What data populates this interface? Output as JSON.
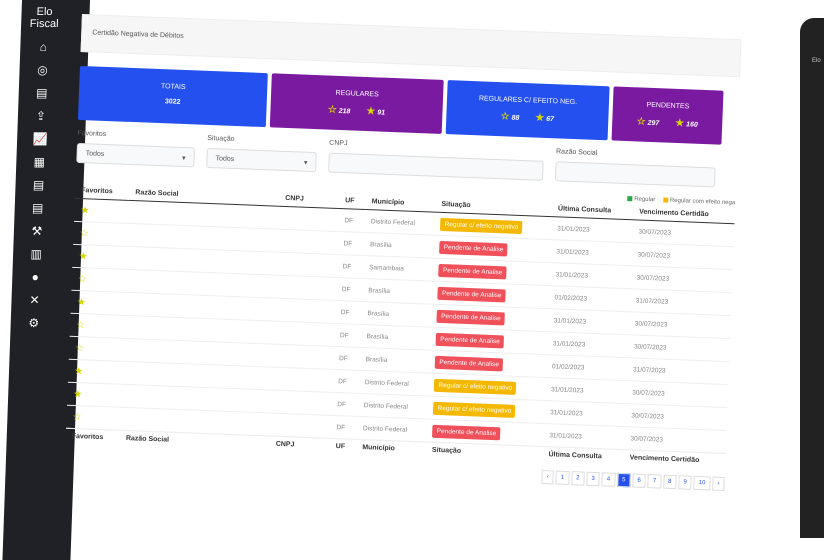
{
  "sidebar": {
    "brand": "Elo Fiscal",
    "icons": [
      "home-icon",
      "whatsapp-icon",
      "file-icon",
      "upload-icon",
      "chart-icon",
      "calculator-icon",
      "file-icon",
      "file-icon",
      "gavel-icon",
      "building-icon",
      "user-icon",
      "tools-icon",
      "gear-icon"
    ]
  },
  "device": {
    "label": "Elo"
  },
  "breadcrumb": "Certidão Negativa de Débitos",
  "cards": [
    {
      "title": "TOTAIS",
      "total": "3022",
      "color": "#2450f0"
    },
    {
      "title": "REGULARES",
      "outline": "218",
      "filled": "91",
      "color": "#7a1aa1"
    },
    {
      "title": "REGULARES C/ EFEITO NEG.",
      "outline": "88",
      "filled": "67",
      "color": "#2450f0"
    },
    {
      "title": "PENDENTES",
      "outline": "297",
      "filled": "160",
      "color": "#7a1aa1"
    }
  ],
  "filters": {
    "favoritos_label": "Favoritos",
    "favoritos_value": "Todos",
    "situacao_label": "Situação",
    "situacao_value": "Todos",
    "cnpj_label": "CNPJ",
    "razao_label": "Razão Social"
  },
  "legend": {
    "regular": "Regular",
    "regular_neg": "Regular com efeito nega"
  },
  "columns": [
    "Favoritos",
    "Razão Social",
    "CNPJ",
    "UF",
    "Município",
    "Situação",
    "Última Consulta",
    "Vencimento Certidão"
  ],
  "rows": [
    {
      "fav": true,
      "uf": "DF",
      "mun": "Distrito Federal",
      "sit": "Regular c/ efeito negativo",
      "status": "warn",
      "ult": "31/01/2023",
      "venc": "30/07/2023"
    },
    {
      "fav": false,
      "uf": "DF",
      "mun": "Brasília",
      "sit": "Pendente de Analise",
      "status": "danger",
      "ult": "31/01/2023",
      "venc": "30/07/2023"
    },
    {
      "fav": true,
      "uf": "DF",
      "mun": "Samambaia",
      "sit": "Pendente de Analise",
      "status": "danger",
      "ult": "31/01/2023",
      "venc": "30/07/2023"
    },
    {
      "fav": false,
      "uf": "DF",
      "mun": "Brasília",
      "sit": "Pendente de Analise",
      "status": "danger",
      "ult": "01/02/2023",
      "venc": "31/07/2023"
    },
    {
      "fav": true,
      "uf": "DF",
      "mun": "Brasília",
      "sit": "Pendente de Analise",
      "status": "danger",
      "ult": "31/01/2023",
      "venc": "30/07/2023"
    },
    {
      "fav": false,
      "uf": "DF",
      "mun": "Brasília",
      "sit": "Pendente de Analise",
      "status": "danger",
      "ult": "31/01/2023",
      "venc": "30/07/2023"
    },
    {
      "fav": false,
      "uf": "DF",
      "mun": "Brasília",
      "sit": "Pendente de Analise",
      "status": "danger",
      "ult": "01/02/2023",
      "venc": "31/07/2023"
    },
    {
      "fav": true,
      "uf": "DF",
      "mun": "Distrito Federal",
      "sit": "Regular c/ efeito negativo",
      "status": "warn",
      "ult": "31/01/2023",
      "venc": "30/07/2023"
    },
    {
      "fav": true,
      "uf": "DF",
      "mun": "Distrito Federal",
      "sit": "Regular c/ efeito negativo",
      "status": "warn",
      "ult": "31/01/2023",
      "venc": "30/07/2023"
    },
    {
      "fav": false,
      "uf": "DF",
      "mun": "Distrito Federal",
      "sit": "Pendente de Analise",
      "status": "danger",
      "ult": "31/01/2023",
      "venc": "30/07/2023"
    }
  ],
  "colors": {
    "warn": "#f5b800",
    "danger": "#f0505a",
    "regular": "#28a745"
  },
  "pagination": {
    "prev": "‹",
    "pages": [
      "1",
      "2",
      "3",
      "4",
      "5",
      "6",
      "7",
      "8",
      "9",
      "10"
    ],
    "active": "5",
    "next": "›"
  }
}
